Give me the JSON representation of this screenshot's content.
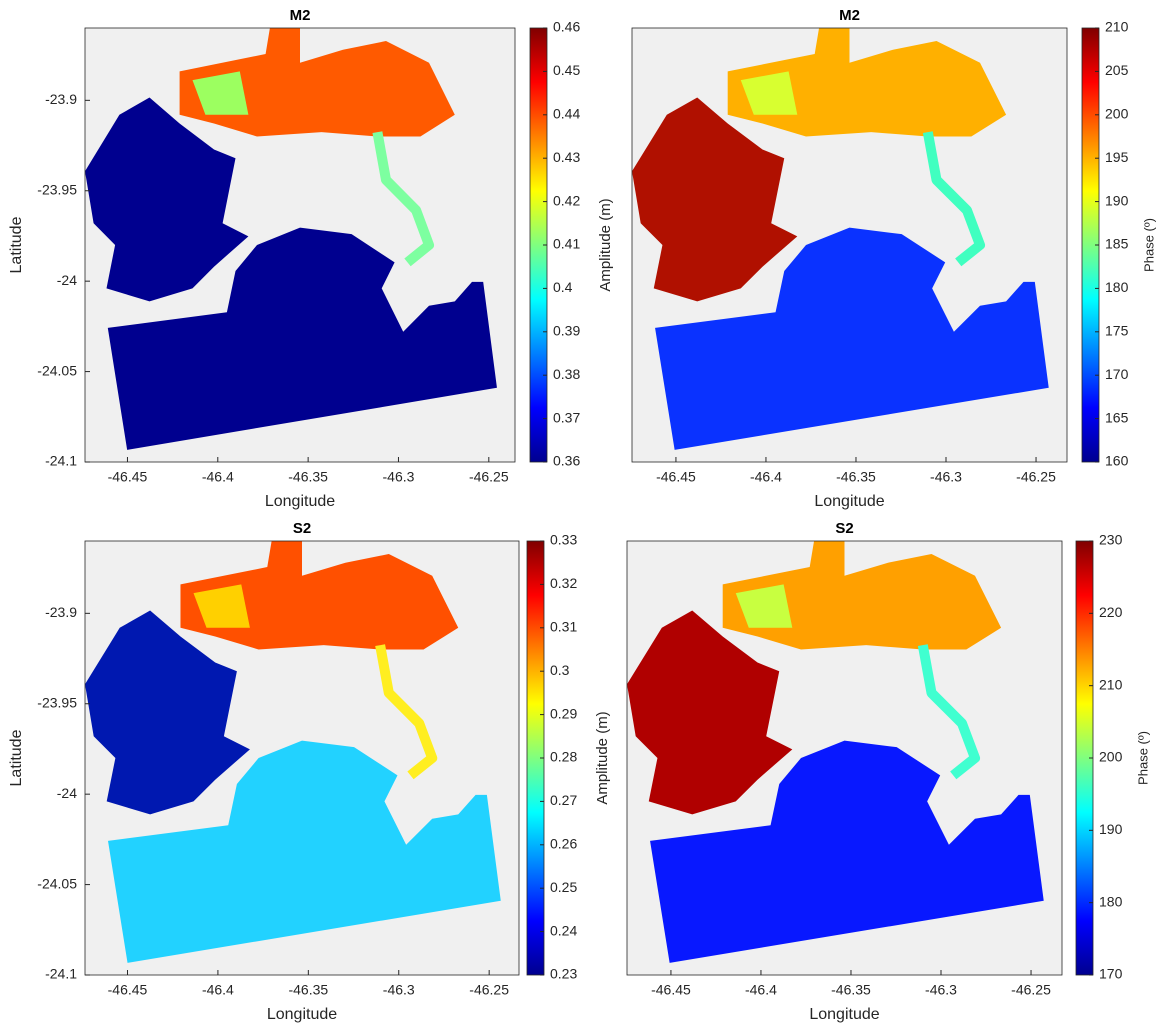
{
  "chart_data": [
    {
      "type": "map",
      "title": "M2",
      "xlabel": "Longitude",
      "ylabel": "Latitude",
      "xlim": [
        -46.4735,
        -46.2355
      ],
      "xticks": [
        -46.45,
        -46.4,
        -46.35,
        -46.3,
        -46.25
      ],
      "ylim": [
        -24.1,
        -23.86
      ],
      "yticks": [
        -23.9,
        -23.95,
        -24,
        -24.05,
        -24.1
      ],
      "colorbar": {
        "label": "Amplitude (m)",
        "clim": [
          0.36,
          0.46
        ],
        "ticks": [
          0.36,
          0.37,
          0.38,
          0.39,
          0.4,
          0.41,
          0.42,
          0.43,
          0.44,
          0.45,
          0.46
        ],
        "colormap": "jet"
      }
    },
    {
      "type": "map",
      "title": "M2",
      "xlabel": "Longitude",
      "xlim": [
        -46.4744,
        -46.2328
      ],
      "xticks": [
        -46.45,
        -46.4,
        -46.35,
        -46.3,
        -46.25
      ],
      "colorbar": {
        "label": "Phase (º)",
        "clim": [
          160,
          210
        ],
        "ticks": [
          160,
          165,
          170,
          175,
          180,
          185,
          190,
          195,
          200,
          205,
          210
        ],
        "colormap": "jet"
      }
    },
    {
      "type": "map",
      "title": "S2",
      "xlabel": "Longitude",
      "ylabel": "Latitude",
      "xlim": [
        -46.4735,
        -46.2335
      ],
      "xticks": [
        -46.45,
        -46.4,
        -46.35,
        -46.3,
        -46.25
      ],
      "ylim": [
        -24.1,
        -23.86
      ],
      "yticks": [
        -23.9,
        -23.95,
        -24,
        -24.05,
        -24.1
      ],
      "colorbar": {
        "label": "Amplitude (m)",
        "clim": [
          0.23,
          0.33
        ],
        "ticks": [
          0.23,
          0.24,
          0.25,
          0.26,
          0.27,
          0.28,
          0.29,
          0.3,
          0.31,
          0.32,
          0.33
        ],
        "colormap": "jet"
      }
    },
    {
      "type": "map",
      "title": "S2",
      "xlabel": "Longitude",
      "xlim": [
        -46.4744,
        -46.2328
      ],
      "xticks": [
        -46.45,
        -46.4,
        -46.35,
        -46.3,
        -46.25
      ],
      "colorbar": {
        "label": "Phase (º)",
        "clim": [
          170,
          230
        ],
        "ticks": [
          170,
          180,
          190,
          200,
          210,
          220,
          230
        ],
        "colormap": "jet"
      }
    }
  ]
}
